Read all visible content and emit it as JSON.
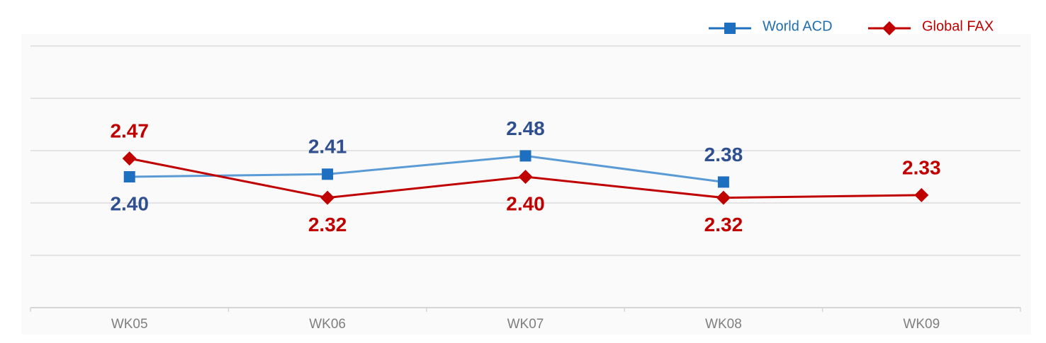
{
  "chart_data": {
    "type": "line",
    "categories": [
      "WK05",
      "WK06",
      "WK07",
      "WK08",
      "WK09"
    ],
    "series": [
      {
        "name": "World ACD",
        "color": "#5b9bd5",
        "marker_color": "#1f6fc0",
        "label_color": "#2f4f8f",
        "marker": "square",
        "values": [
          2.4,
          2.41,
          2.48,
          2.38,
          null
        ],
        "value_labels": [
          "2.40",
          "2.41",
          "2.48",
          "2.38",
          null
        ]
      },
      {
        "name": "Global FAX",
        "color": "#c00000",
        "marker_color": "#c00000",
        "label_color": "#c00000",
        "marker": "diamond",
        "values": [
          2.47,
          2.32,
          2.4,
          2.32,
          2.33
        ],
        "value_labels": [
          "2.47",
          "2.32",
          "2.40",
          "2.32",
          "2.33"
        ]
      }
    ],
    "ylim": [
      1.9,
      2.9
    ],
    "yticks": [
      2.1,
      2.3,
      2.5,
      2.7,
      2.9
    ],
    "grid": true,
    "legend": "top-right"
  }
}
